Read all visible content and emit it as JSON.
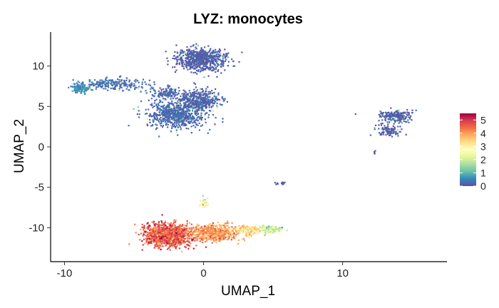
{
  "chart_data": {
    "type": "scatter",
    "title": "LYZ: monocytes",
    "xlabel": "UMAP_1",
    "ylabel": "UMAP_2",
    "xlim": [
      -11,
      17.5
    ],
    "ylim": [
      -14.2,
      14.2
    ],
    "xticks": [
      -10,
      0,
      10
    ],
    "xtick_labels": [
      "-10",
      "0",
      "10"
    ],
    "yticks": [
      -10,
      -5,
      0,
      5,
      10
    ],
    "ytick_labels": [
      "-10",
      "-5",
      "0",
      "5",
      "10"
    ],
    "grid": false,
    "legend": {
      "type": "colorbar",
      "placement": "right",
      "min": 0,
      "max": 5.5,
      "ticks": [
        0,
        1,
        2,
        3,
        4,
        5
      ],
      "tick_labels": [
        "0",
        "1",
        "2",
        "3",
        "4",
        "5"
      ],
      "palette": [
        "#5E4FA2",
        "#3288BD",
        "#66C2A5",
        "#ABDDA4",
        "#E6F598",
        "#FFFFBF",
        "#FEE08B",
        "#FDAE61",
        "#F46D43",
        "#D53E4F",
        "#9E0142"
      ]
    },
    "clusters": [
      {
        "cx": -0.2,
        "cy": 10.8,
        "sx": 1.4,
        "sy": 1.2,
        "n": 650,
        "expr": 0.15
      },
      {
        "cx": -2.0,
        "cy": 4.0,
        "sx": 1.7,
        "sy": 1.5,
        "n": 700,
        "expr": 0.25
      },
      {
        "cx": -0.3,
        "cy": 5.8,
        "sx": 1.2,
        "sy": 1.0,
        "n": 400,
        "expr": 0.2
      },
      {
        "cx": -2.7,
        "cy": 6.7,
        "sx": 1.0,
        "sy": 0.6,
        "n": 120,
        "expr": 0.2
      },
      {
        "cx": -6.5,
        "cy": 7.8,
        "sx": 2.0,
        "sy": 0.6,
        "n": 220,
        "expr": 0.3
      },
      {
        "cx": -8.8,
        "cy": 7.3,
        "sx": 0.6,
        "sy": 0.5,
        "n": 120,
        "expr": 0.6
      },
      {
        "cx": 13.8,
        "cy": 3.8,
        "sx": 1.0,
        "sy": 0.6,
        "n": 180,
        "expr": 0.15
      },
      {
        "cx": 13.4,
        "cy": 2.0,
        "sx": 0.7,
        "sy": 0.6,
        "n": 100,
        "expr": 0.15
      },
      {
        "cx": -2.5,
        "cy": -10.9,
        "sx": 1.4,
        "sy": 1.1,
        "n": 1300,
        "expr": 4.6
      },
      {
        "cx": 0.8,
        "cy": -10.6,
        "sx": 1.5,
        "sy": 0.8,
        "n": 600,
        "expr": 4.0
      },
      {
        "cx": 3.2,
        "cy": -10.3,
        "sx": 0.7,
        "sy": 0.4,
        "n": 200,
        "expr": 3.2
      },
      {
        "cx": 4.8,
        "cy": -10.2,
        "sx": 0.6,
        "sy": 0.35,
        "n": 150,
        "expr": 2.0
      },
      {
        "cx": 0.1,
        "cy": -7.0,
        "sx": 0.25,
        "sy": 0.5,
        "n": 40,
        "expr": 2.5
      },
      {
        "cx": 5.5,
        "cy": -4.5,
        "sx": 0.3,
        "sy": 0.15,
        "n": 15,
        "expr": 0.2
      },
      {
        "cx": 12.3,
        "cy": -0.8,
        "sx": 0.1,
        "sy": 0.3,
        "n": 6,
        "expr": 0.1
      }
    ]
  }
}
